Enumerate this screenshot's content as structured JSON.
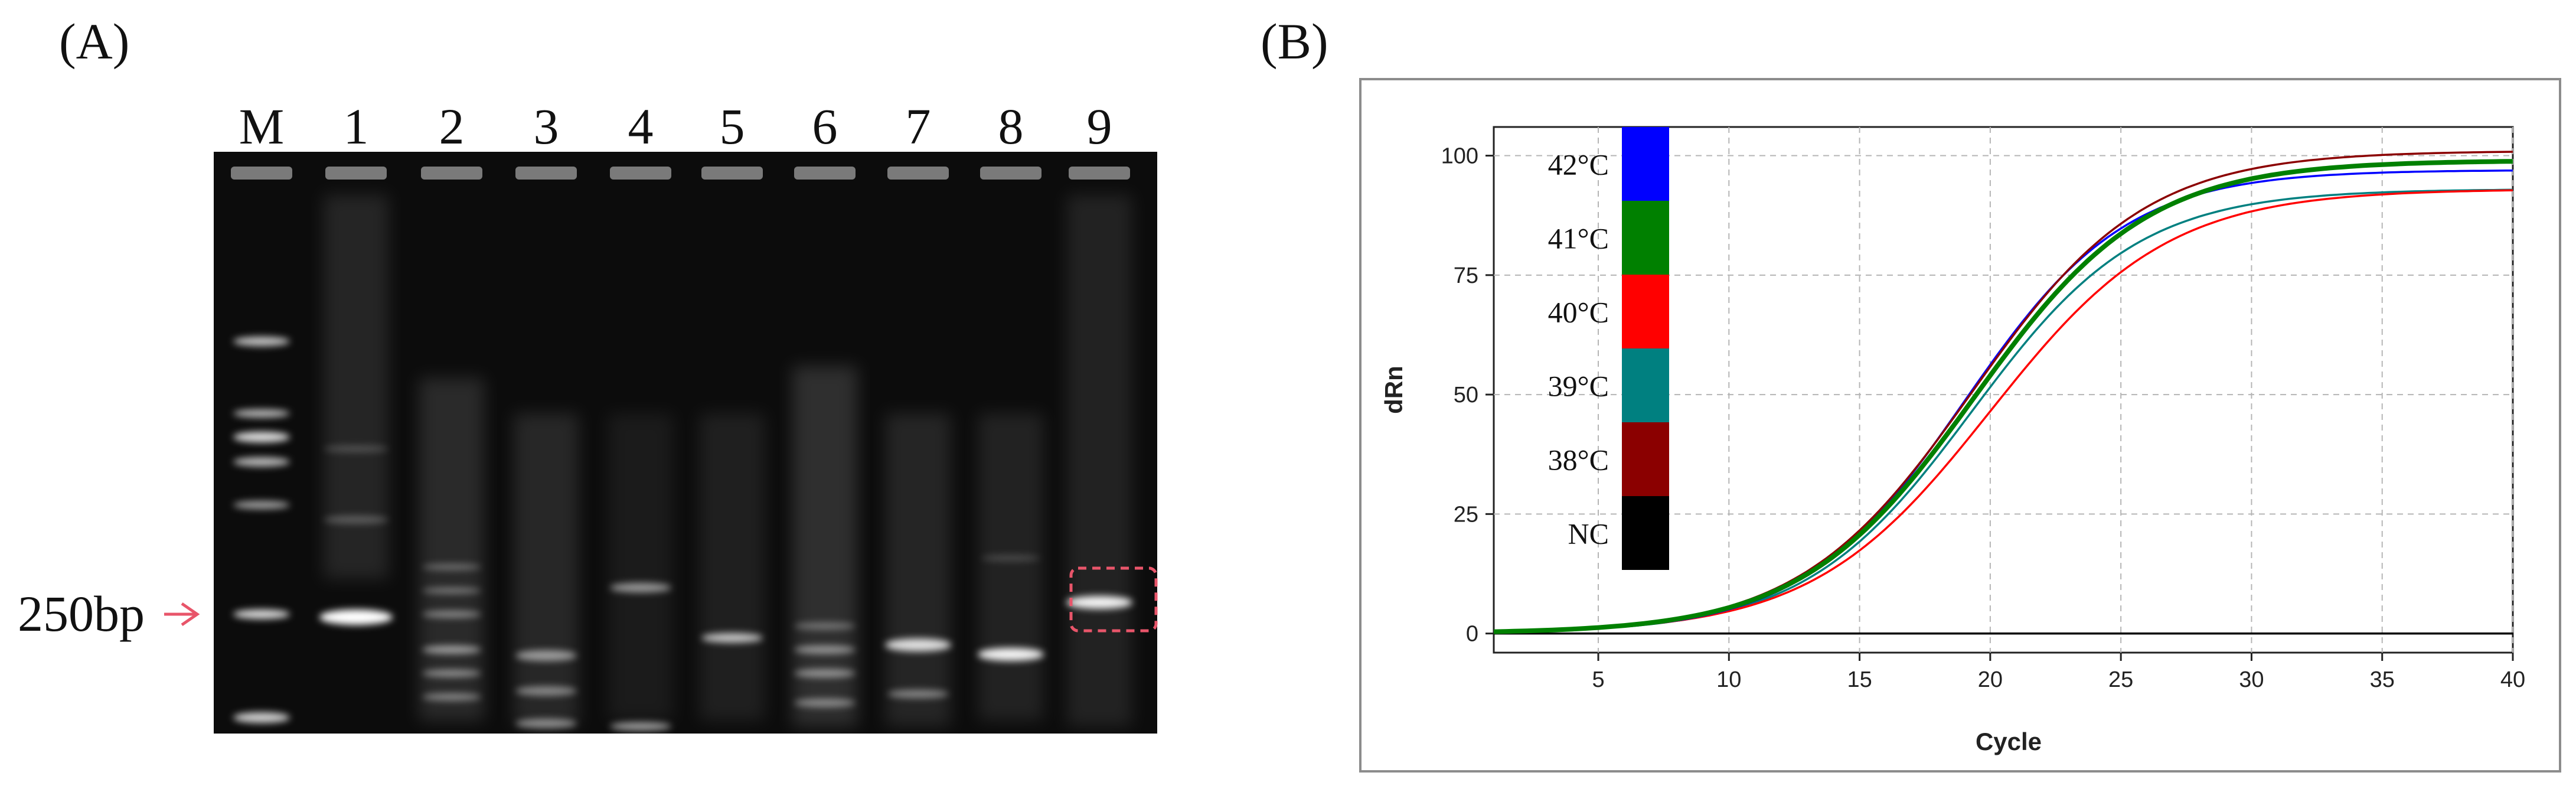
{
  "panelA": {
    "label": "(A)",
    "lanes": [
      "M",
      "1",
      "2",
      "3",
      "4",
      "5",
      "6",
      "7",
      "8",
      "9"
    ],
    "marker_label": "250bp",
    "highlight_lane": "9"
  },
  "panelB": {
    "label": "(B)"
  },
  "chart_data": {
    "type": "line",
    "xlabel": "Cycle",
    "ylabel": "dRn",
    "xlim": [
      1,
      40
    ],
    "ylim": [
      -4,
      106
    ],
    "xticks": [
      5,
      10,
      15,
      20,
      25,
      30,
      35,
      40
    ],
    "yticks": [
      0,
      25,
      50,
      75,
      100
    ],
    "grid": true,
    "legend_position": "top-left",
    "legend": [
      {
        "name": "42°C",
        "color": "#0000ff"
      },
      {
        "name": "41°C",
        "color": "#008000"
      },
      {
        "name": "40°C",
        "color": "#ff0000"
      },
      {
        "name": "39°C",
        "color": "#008080"
      },
      {
        "name": "38°C",
        "color": "#8b0000"
      },
      {
        "name": "NC",
        "color": "#000000"
      }
    ],
    "series": [
      {
        "name": "42°C",
        "color": "#0000ff",
        "plateau": 97,
        "midpoint": 19.0,
        "slope": 3.1
      },
      {
        "name": "41°C",
        "color": "#008000",
        "plateau": 99,
        "midpoint": 19.4,
        "slope": 3.3
      },
      {
        "name": "40°C",
        "color": "#ff0000",
        "plateau": 93,
        "midpoint": 20.0,
        "slope": 3.4
      },
      {
        "name": "39°C",
        "color": "#008080",
        "plateau": 93,
        "midpoint": 19.3,
        "slope": 3.2
      },
      {
        "name": "38°C",
        "color": "#8b0000",
        "plateau": 101,
        "midpoint": 19.3,
        "slope": 3.3
      },
      {
        "name": "NC",
        "color": "#000000",
        "plateau": 0,
        "midpoint": 20,
        "slope": 3
      }
    ]
  }
}
